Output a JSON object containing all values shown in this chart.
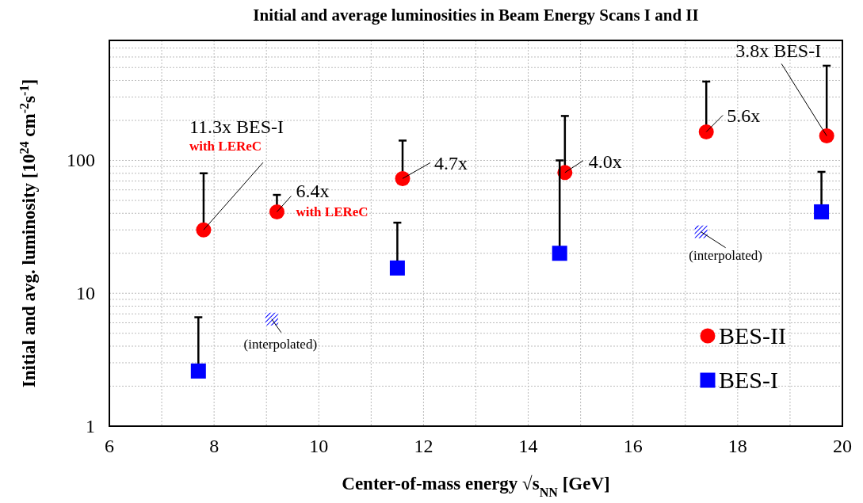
{
  "chart_data": {
    "type": "scatter",
    "title": "Initial and average luminosities in Beam Energy Scans I and II",
    "xlabel": "Center-of-mass energy √s$_{NN}$ [GeV]",
    "ylabel": "Initial and avg. luminosity [10$^{24}$ cm$^{-2}$s$^{-1}$]",
    "xlim": [
      6,
      20
    ],
    "xticks": [
      6,
      {
        "value": 7,
        "label": null
      },
      8,
      {
        "value": 9,
        "label": null
      },
      10,
      {
        "value": 11,
        "label": null
      },
      12,
      {
        "value": 13,
        "label": null
      },
      14,
      {
        "value": 15,
        "label": null
      },
      16,
      {
        "value": 17,
        "label": null
      },
      18,
      {
        "value": 19,
        "label": null
      },
      20
    ],
    "ylim": [
      1,
      800
    ],
    "yticks": [
      1,
      {
        "value": 2,
        "label": null
      },
      {
        "value": 3,
        "label": null
      },
      {
        "value": 4,
        "label": null
      },
      {
        "value": 5,
        "label": null
      },
      {
        "value": 6,
        "label": null
      },
      {
        "value": 7,
        "label": null
      },
      {
        "value": 8,
        "label": null
      },
      {
        "value": 9,
        "label": null
      },
      10,
      {
        "value": 20,
        "label": null
      },
      {
        "value": 30,
        "label": null
      },
      {
        "value": 40,
        "label": null
      },
      {
        "value": 50,
        "label": null
      },
      {
        "value": 60,
        "label": null
      },
      {
        "value": 70,
        "label": null
      },
      {
        "value": 80,
        "label": null
      },
      {
        "value": 90,
        "label": null
      },
      100,
      {
        "value": 200,
        "label": null
      },
      {
        "value": 300,
        "label": null
      },
      {
        "value": 400,
        "label": null
      },
      {
        "value": 500,
        "label": null
      },
      {
        "value": 600,
        "label": null
      },
      {
        "value": 700,
        "label": null
      },
      {
        "value": 800,
        "label": null
      }
    ],
    "log": "y",
    "grid": true,
    "legend": "bottom right",
    "series": [
      {
        "name": "BES-II",
        "color": "#ff0000",
        "marker": "circle",
        "x": [
          7.8,
          9.2,
          11.6,
          14.7,
          17.4,
          19.7
        ],
        "values": [
          30,
          41,
          73,
          81,
          164,
          153
        ],
        "errors": [
          [
            30,
            80
          ],
          [
            41,
            55
          ],
          [
            73,
            141
          ],
          [
            81,
            216
          ],
          [
            164,
            392
          ],
          [
            153,
            516
          ]
        ]
      },
      {
        "name": "BES-I",
        "color": "#0000ff",
        "marker": "square",
        "x": [
          7.7,
          11.5,
          14.6,
          19.6
        ],
        "values": [
          2.6,
          15.5,
          20,
          41
        ],
        "errors": [
          [
            2.6,
            6.6
          ],
          [
            15.5,
            34
          ],
          [
            20,
            100
          ],
          [
            41,
            82
          ]
        ]
      },
      {
        "color": "#0000ff",
        "marker": "square",
        "x": [
          9.1,
          17.3
        ],
        "values": [
          6.4,
          29
        ]
      }
    ],
    "annotations": [
      "11.3x BES-I",
      {
        "text": "with LEReC",
        "x": 7.8,
        "y": 30
      },
      {
        "text": "6.4x",
        "x": 9.2,
        "y": 41
      },
      {
        "text": "with LEReC",
        "x": 9.2,
        "y": 41
      },
      {
        "text": "4.7x",
        "x": 11.6,
        "y": 73
      },
      {
        "text": "4.0x",
        "x": 14.7,
        "y": 81
      },
      {
        "text": "5.6x",
        "x": 17.4,
        "y": 164
      },
      {
        "text": "3.8x BES-I",
        "x": 19.7,
        "y": 153
      },
      {
        "text": "(interpolated)",
        "x": 9.1,
        "y": 6.4
      },
      {
        "text": "(interpolated)",
        "x": 17.3,
        "y": 29
      }
    ]
  }
}
